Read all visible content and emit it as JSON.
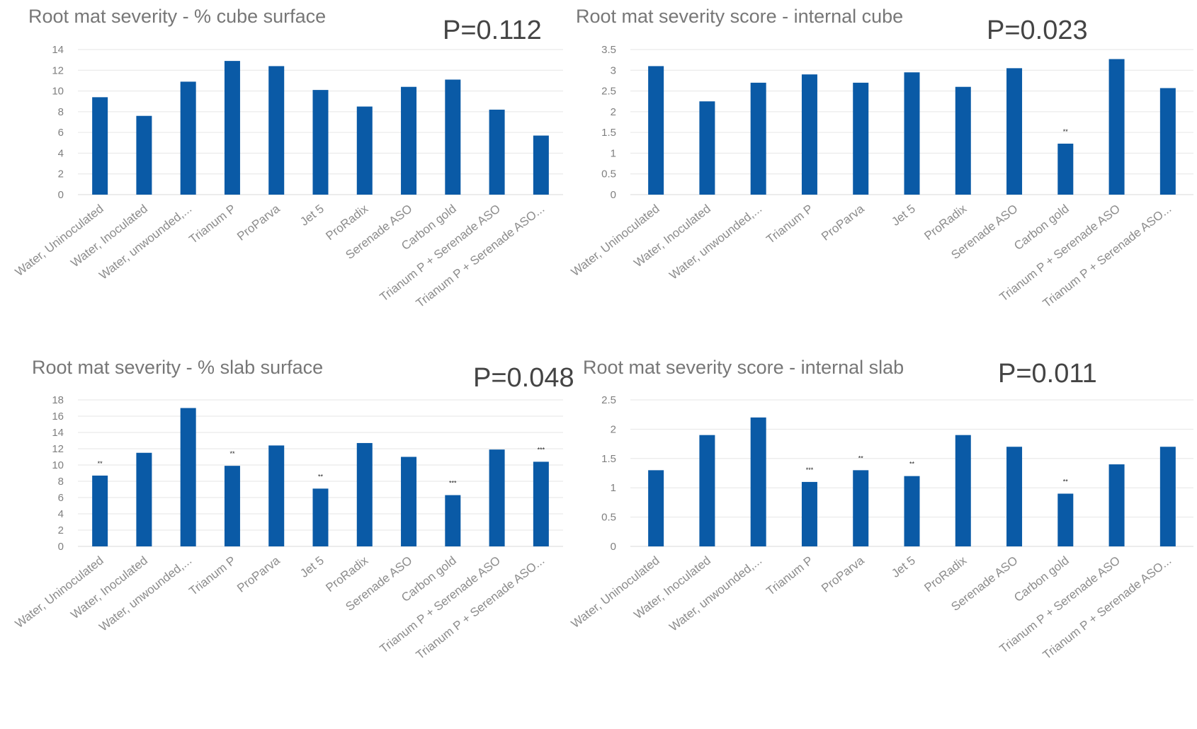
{
  "chart_data": [
    {
      "type": "bar",
      "title": "Root mat severity - % cube surface",
      "p_value": "P=0.112",
      "categories": [
        "Water, Uninoculated",
        "Water, Inoculated",
        "Water, unwounded,...",
        "Trianum P",
        "ProParva",
        "Jet 5",
        "ProRadix",
        "Serenade ASO",
        "Carbon gold",
        "Trianum P + Serenade ASO",
        "Trianum P + Serenade ASO..."
      ],
      "values": [
        9.4,
        7.6,
        10.9,
        12.9,
        12.4,
        10.1,
        8.5,
        10.4,
        11.1,
        8.2,
        5.7
      ],
      "markers": [
        "",
        "",
        "",
        "",
        "",
        "",
        "",
        "",
        "",
        "",
        ""
      ],
      "ylim": [
        0,
        14
      ],
      "yticks": [
        "0",
        "2",
        "4",
        "6",
        "8",
        "10",
        "12",
        "14"
      ],
      "grid": true,
      "bar_color": "#0a5aa6"
    },
    {
      "type": "bar",
      "title": "Root mat severity score - internal cube",
      "p_value": "P=0.023",
      "categories": [
        "Water, Uninoculated",
        "Water, Inoculated",
        "Water, unwounded,...",
        "Trianum P",
        "ProParva",
        "Jet 5",
        "ProRadix",
        "Serenade ASO",
        "Carbon gold",
        "Trianum P + Serenade ASO",
        "Trianum P + Serenade ASO..."
      ],
      "values": [
        3.1,
        2.25,
        2.7,
        2.9,
        2.7,
        2.95,
        2.6,
        3.05,
        1.23,
        3.27,
        2.57
      ],
      "markers": [
        "",
        "",
        "",
        "",
        "",
        "",
        "",
        "",
        "**",
        "",
        ""
      ],
      "ylim": [
        0,
        3.5
      ],
      "yticks": [
        "0",
        "0.5",
        "1",
        "1.5",
        "2",
        "2.5",
        "3",
        "3.5"
      ],
      "grid": true,
      "bar_color": "#0a5aa6"
    },
    {
      "type": "bar",
      "title": "Root mat severity - % slab surface",
      "p_value": "P=0.048",
      "categories": [
        "Water, Uninoculated",
        "Water, Inoculated",
        "Water, unwounded,...",
        "Trianum P",
        "ProParva",
        "Jet 5",
        "ProRadix",
        "Serenade ASO",
        "Carbon gold",
        "Trianum P + Serenade ASO",
        "Trianum P + Serenade ASO..."
      ],
      "values": [
        8.7,
        11.5,
        17.0,
        9.9,
        12.4,
        7.1,
        12.7,
        11.0,
        6.3,
        11.9,
        10.4
      ],
      "markers": [
        "**",
        "",
        "",
        "**",
        "",
        "**",
        "",
        "",
        "***",
        "",
        "***"
      ],
      "ylim": [
        0,
        18
      ],
      "yticks": [
        "0",
        "2",
        "4",
        "6",
        "8",
        "10",
        "12",
        "14",
        "16",
        "18"
      ],
      "grid": true,
      "bar_color": "#0a5aa6"
    },
    {
      "type": "bar",
      "title": "Root mat severity score - internal slab",
      "p_value": "P=0.011",
      "categories": [
        "Water, Uninoculated",
        "Water, Inoculated",
        "Water, unwounded,...",
        "Trianum P",
        "ProParva",
        "Jet 5",
        "ProRadix",
        "Serenade ASO",
        "Carbon gold",
        "Trianum P + Serenade ASO",
        "Trianum P + Serenade ASO..."
      ],
      "values": [
        1.3,
        1.9,
        2.2,
        1.1,
        1.3,
        1.2,
        1.9,
        1.7,
        0.9,
        1.4,
        1.7
      ],
      "markers": [
        "",
        "",
        "",
        "***",
        "**",
        "**",
        "",
        "",
        "**",
        "",
        ""
      ],
      "ylim": [
        0,
        2.5
      ],
      "yticks": [
        "0",
        "0.5",
        "1",
        "1.5",
        "2",
        "2.5"
      ],
      "grid": true,
      "bar_color": "#0a5aa6"
    }
  ]
}
